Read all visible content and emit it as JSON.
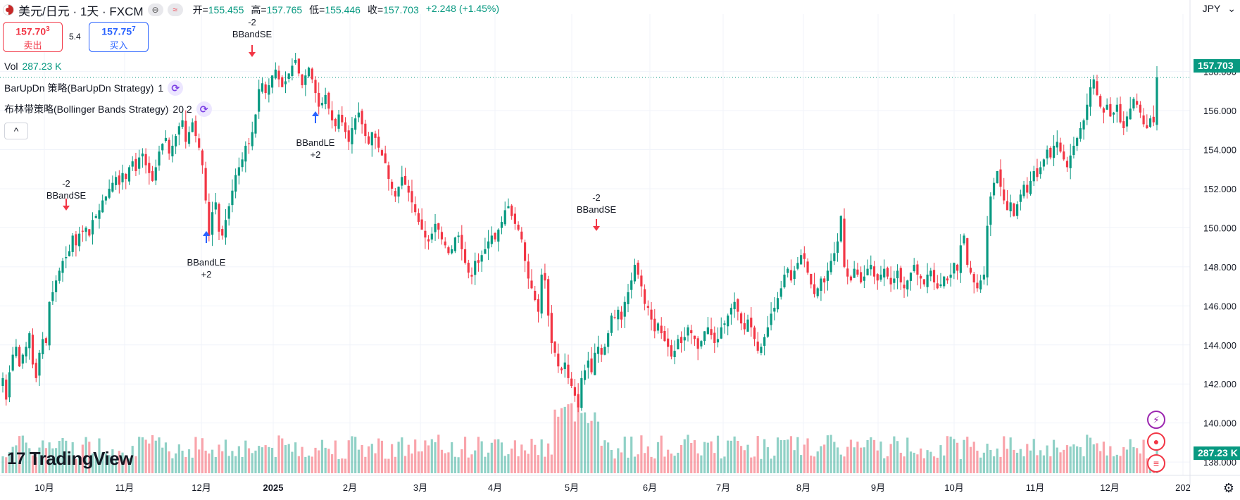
{
  "header": {
    "symbol": "美元/日元 · 1天 · FXCM",
    "flag_icon": "us-flag-icon",
    "pill_1": "⊖",
    "pill_2": "≈",
    "open_label": "开=",
    "open": "155.455",
    "high_label": "高=",
    "high": "157.765",
    "low_label": "低=",
    "low": "155.446",
    "close_label": "收=",
    "close": "157.703",
    "change": "+2.248 (+1.45%)"
  },
  "trade": {
    "sell_price": "157.70",
    "sell_small": "3",
    "sell_label": "卖出",
    "spread": "5.4",
    "buy_price": "157.75",
    "buy_small": "7",
    "buy_label": "买入"
  },
  "legend": {
    "vol_label": "Vol",
    "vol_value": "287.23 K",
    "strategy1_name": "BarUpDn 策略(BarUpDn Strategy)",
    "strategy1_params": "1",
    "strategy2_name": "布林带策略(Bollinger Bands Strategy)",
    "strategy2_params": "20 2",
    "collapse": "^"
  },
  "axis": {
    "currency": "JPY",
    "last_price": "157.703",
    "last_volume": "287.23 K",
    "price_ticks": [
      "158.000",
      "156.000",
      "154.000",
      "152.000",
      "150.000",
      "148.000",
      "146.000",
      "144.000",
      "142.000",
      "140.000",
      "138.000"
    ],
    "time_ticks": [
      "10月",
      "11月",
      "12月",
      "2025",
      "2月",
      "3月",
      "4月",
      "5月",
      "6月",
      "7月",
      "8月",
      "9月",
      "10月",
      "11月",
      "12月",
      "202"
    ]
  },
  "brand": {
    "logo_text": "TradingView"
  },
  "colors": {
    "up": "#089981",
    "down": "#f23645",
    "buy_signal": "#2962ff",
    "accent": "#9c27b0"
  },
  "chart_data": {
    "type": "candlestick",
    "instrument": "USD/JPY",
    "interval": "1D",
    "ylim": [
      137.5,
      159.5
    ],
    "last_close": 157.703,
    "series_closes_daily": [
      142.3,
      141.2,
      142.6,
      143.5,
      143.9,
      142.9,
      143.5,
      143.9,
      144.6,
      143.0,
      142.3,
      143.6,
      144.3,
      144.1,
      146.2,
      146.7,
      147.3,
      147.8,
      148.3,
      148.5,
      148.8,
      149.6,
      149.1,
      149.7,
      149.8,
      150.0,
      149.6,
      150.4,
      150.6,
      150.9,
      151.4,
      151.6,
      152.0,
      152.3,
      152.6,
      152.2,
      152.8,
      152.5,
      153.1,
      153.4,
      152.9,
      153.6,
      153.8,
      153.2,
      152.8,
      152.4,
      153.1,
      153.9,
      154.3,
      154.6,
      153.8,
      154.2,
      154.7,
      155.2,
      155.5,
      154.4,
      154.9,
      155.4,
      154.7,
      154.1,
      153.2,
      151.4,
      149.6,
      150.8,
      151.3,
      149.8,
      149.6,
      150.4,
      151.1,
      151.9,
      152.7,
      153.1,
      153.5,
      154.2,
      154.3,
      154.9,
      155.8,
      157.1,
      157.4,
      156.9,
      157.3,
      157.8,
      158.1,
      157.6,
      157.2,
      157.5,
      157.9,
      158.3,
      158.6,
      157.9,
      157.3,
      157.8,
      158.2,
      157.6,
      156.9,
      156.2,
      156.4,
      156.8,
      156.1,
      155.5,
      155.2,
      155.8,
      155.4,
      154.9,
      154.4,
      155.1,
      155.6,
      155.9,
      155.3,
      154.7,
      154.3,
      154.9,
      154.6,
      154.1,
      153.7,
      153.3,
      152.5,
      152.0,
      151.6,
      152.1,
      152.6,
      152.2,
      151.8,
      151.3,
      150.8,
      150.3,
      149.9,
      149.5,
      149.3,
      149.7,
      150.2,
      149.9,
      149.4,
      149.1,
      148.7,
      148.9,
      149.5,
      149.6,
      148.9,
      148.2,
      147.7,
      147.5,
      148.3,
      148.2,
      148.6,
      148.9,
      149.3,
      149.6,
      149.4,
      149.9,
      150.3,
      150.9,
      151.1,
      150.6,
      150.2,
      149.9,
      149.4,
      148.3,
      147.4,
      146.9,
      146.3,
      145.7,
      147.6,
      147.3,
      145.5,
      144.1,
      143.6,
      142.9,
      142.7,
      143.1,
      142.3,
      141.9,
      141.4,
      140.8,
      142.3,
      142.7,
      143.2,
      142.6,
      143.6,
      143.9,
      143.5,
      143.9,
      144.6,
      145.5,
      145.4,
      145.8,
      145.3,
      146.2,
      146.7,
      147.3,
      148.1,
      147.6,
      147.0,
      146.1,
      145.9,
      145.3,
      144.7,
      145.1,
      144.6,
      144.2,
      143.9,
      143.4,
      143.7,
      144.3,
      144.1,
      144.4,
      144.9,
      144.6,
      144.3,
      143.8,
      144.2,
      144.7,
      144.9,
      144.5,
      144.1,
      144.3,
      144.9,
      145.1,
      145.5,
      145.9,
      146.2,
      145.7,
      145.1,
      144.8,
      145.3,
      144.9,
      144.3,
      143.7,
      143.9,
      144.4,
      144.9,
      145.6,
      145.9,
      146.4,
      146.9,
      147.6,
      147.9,
      147.3,
      147.8,
      148.2,
      148.6,
      148.4,
      147.7,
      147.1,
      146.6,
      146.9,
      147.4,
      147.2,
      147.8,
      148.3,
      148.7,
      149.3,
      150.6,
      148.0,
      147.5,
      147.3,
      147.9,
      147.6,
      147.2,
      147.5,
      147.9,
      148.1,
      147.5,
      147.3,
      147.6,
      147.9,
      147.5,
      147.1,
      147.4,
      147.8,
      147.2,
      146.9,
      147.3,
      147.7,
      148.1,
      147.6,
      147.4,
      147.1,
      147.6,
      147.8,
      147.2,
      146.9,
      147.1,
      147.5,
      147.3,
      147.6,
      148.2,
      147.8,
      149.1,
      149.6,
      148.1,
      147.7,
      147.2,
      146.9,
      147.3,
      147.6,
      150.1,
      151.6,
      152.3,
      152.9,
      152.1,
      151.4,
      150.9,
      151.3,
      150.6,
      151.2,
      151.7,
      152.2,
      151.8,
      152.4,
      152.9,
      152.6,
      153.1,
      153.5,
      154.0,
      153.6,
      154.2,
      154.4,
      153.9,
      153.5,
      153.1,
      153.7,
      154.2,
      154.6,
      155.1,
      155.5,
      156.3,
      157.2,
      157.6,
      156.8,
      156.2,
      155.9,
      156.3,
      155.7,
      155.9,
      156.3,
      155.4,
      155.1,
      155.7,
      156.1,
      156.6,
      156.3,
      155.9,
      155.3,
      155.1,
      155.6,
      155.4,
      157.7
    ]
  }
}
